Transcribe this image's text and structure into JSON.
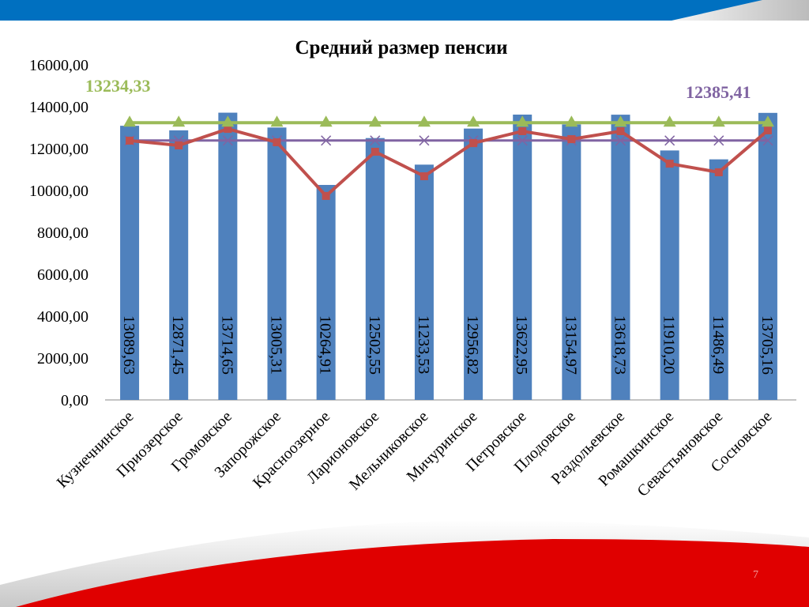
{
  "slide": {
    "page_number": "7"
  },
  "colors": {
    "bar": "#4f81bd",
    "actual_line": "#c0504d",
    "regional_avg": "#9bbb59",
    "district_avg": "#8064a2",
    "top_band": "#0070c0",
    "bottom_band": "#e00000"
  },
  "chart_data": {
    "type": "bar",
    "title": "Средний размер пенсии",
    "xlabel": "",
    "ylabel": "",
    "ylim": [
      0,
      16000
    ],
    "yticks": [
      "0,00",
      "2000,00",
      "4000,00",
      "6000,00",
      "8000,00",
      "10000,00",
      "12000,00",
      "14000,00",
      "16000,00"
    ],
    "ytick_values": [
      0,
      2000,
      4000,
      6000,
      8000,
      10000,
      12000,
      14000,
      16000
    ],
    "grid": false,
    "categories": [
      "Кузнечнинское",
      "Приозерское",
      "Громовское",
      "Запорожское",
      "Красноозерное",
      "Ларионовское",
      "Мельниковское",
      "Мичуринское",
      "Петровское",
      "Плодовское",
      "Раздольевское",
      "Ромашкинское",
      "Севастьяновское",
      "Сосновское"
    ],
    "series": [
      {
        "name": "bars",
        "type": "bar",
        "values": [
          13089.63,
          12871.45,
          13714.65,
          13005.31,
          10264.91,
          12502.55,
          11233.53,
          12956.82,
          13622.95,
          13154.97,
          13618.73,
          11910.2,
          11486.49,
          13705.16
        ],
        "labels": [
          "13089,63",
          "12871,45",
          "13714,65",
          "13005,31",
          "10264,91",
          "12502,55",
          "11233,53",
          "12956,82",
          "13622,95",
          "13154,97",
          "13618,73",
          "11910,20",
          "11486,49",
          "13705,16"
        ]
      },
      {
        "name": "red-line",
        "type": "line",
        "marker": "square",
        "values": [
          12380,
          12150,
          12940,
          12300,
          9740,
          11850,
          10680,
          12260,
          12830,
          12450,
          12830,
          11280,
          10870,
          12870
        ]
      },
      {
        "name": "green-line",
        "type": "line",
        "marker": "triangle",
        "value": 13234.33,
        "label": "13234,33"
      },
      {
        "name": "purple-line",
        "type": "line",
        "marker": "x",
        "value": 12385.41,
        "label": "12385,41"
      }
    ]
  }
}
